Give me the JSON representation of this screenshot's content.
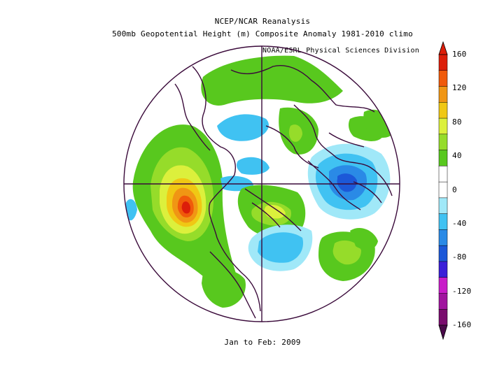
{
  "title": {
    "line1": "NCEP/NCAR Reanalysis",
    "line2": "500mb Geopotential Height (m) Composite Anomaly 1981-2010 climo"
  },
  "credit": "NOAA/ESRL Physical Sciences Division",
  "period": "Jan to Feb: 2009",
  "projection": "north polar stereographic",
  "colorbar": {
    "ticks": [
      "160",
      "120",
      "80",
      "40",
      "0",
      "-40",
      "-80",
      "-120",
      "-160"
    ],
    "colors": [
      "#7a0c6e",
      "#a0149e",
      "#c81cc8",
      "#3a1fd8",
      "#1c58d8",
      "#2a8ae6",
      "#40c2f2",
      "#a0e8f8",
      "#ffffff",
      "#ffffff",
      "#58c81e",
      "#96dc2a",
      "#dcf03c",
      "#f0c814",
      "#f09614",
      "#f05a0a",
      "#dc1e0a"
    ]
  },
  "anomaly_features": [
    {
      "region": "northeast-pacific",
      "sign": "positive",
      "max_m": 160
    },
    {
      "region": "eastern-europe-asia",
      "sign": "negative",
      "min_m": -80
    },
    {
      "region": "canada-greenland",
      "sign": "negative",
      "min_m": -40
    },
    {
      "region": "north-atlantic",
      "sign": "positive",
      "max_m": 40
    }
  ]
}
